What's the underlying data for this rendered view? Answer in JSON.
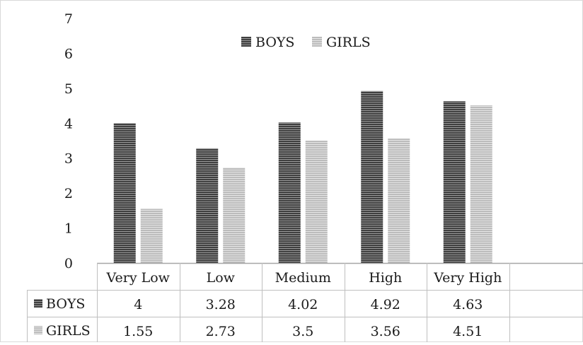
{
  "chart_data": {
    "type": "bar",
    "title": "",
    "xlabel": "",
    "ylabel": "",
    "ylim": [
      0,
      7
    ],
    "yticks": [
      "0",
      "1",
      "2",
      "3",
      "4",
      "5",
      "6",
      "7"
    ],
    "categories": [
      "Very Low",
      "Low",
      "Medium",
      "High",
      "Very High"
    ],
    "series": [
      {
        "name": "BOYS",
        "values": [
          4,
          3.28,
          4.02,
          4.92,
          4.63
        ],
        "labels": [
          "4",
          "3.28",
          "4.02",
          "4.92",
          "4.63"
        ],
        "color": "#555555"
      },
      {
        "name": "GIRLS",
        "values": [
          1.55,
          2.73,
          3.5,
          3.56,
          4.51
        ],
        "labels": [
          "1.55",
          "2.73",
          "3.5",
          "3.56",
          "4.51"
        ],
        "color": "#bdbdbd"
      }
    ],
    "legend": "top-center",
    "grid": false,
    "data_table": true
  }
}
